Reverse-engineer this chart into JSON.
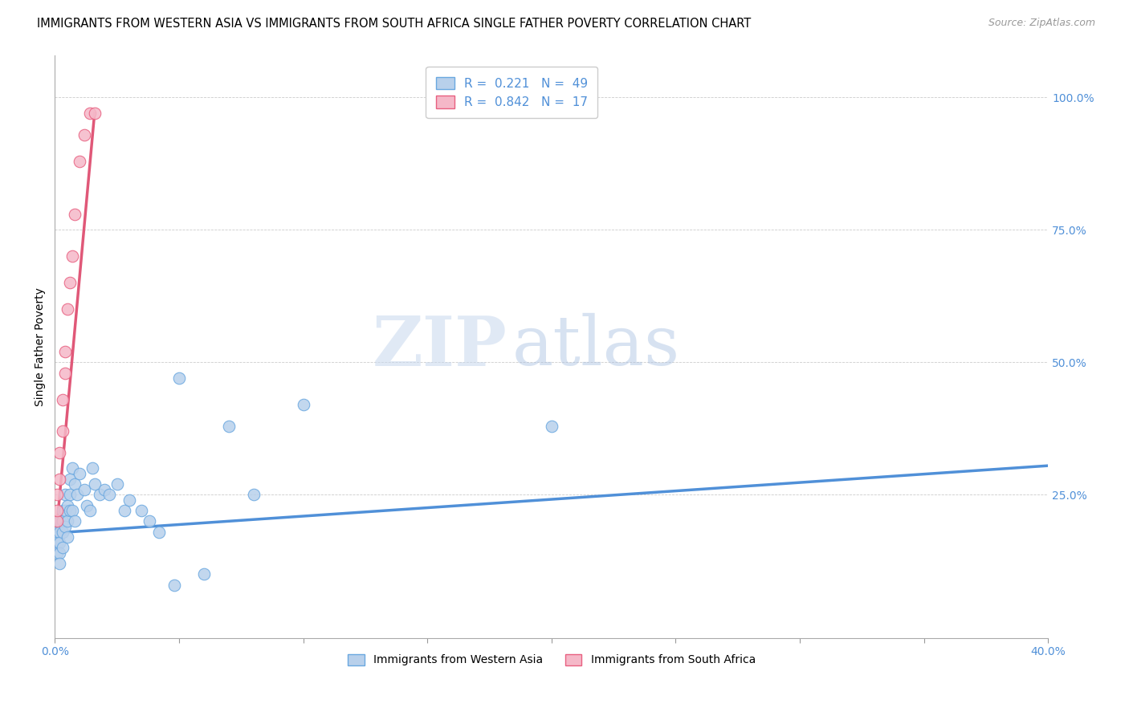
{
  "title": "IMMIGRANTS FROM WESTERN ASIA VS IMMIGRANTS FROM SOUTH AFRICA SINGLE FATHER POVERTY CORRELATION CHART",
  "source": "Source: ZipAtlas.com",
  "ylabel": "Single Father Poverty",
  "xlim": [
    0.0,
    0.4
  ],
  "ylim": [
    -0.02,
    1.08
  ],
  "right_ytick_vals": [
    0.25,
    0.5,
    0.75,
    1.0
  ],
  "right_ytick_labels": [
    "25.0%",
    "50.0%",
    "75.0%",
    "100.0%"
  ],
  "watermark_zip": "ZIP",
  "watermark_atlas": "atlas",
  "blue_color": "#b8d0eb",
  "pink_color": "#f5b8c8",
  "blue_edge": "#6aa8e0",
  "pink_edge": "#e86080",
  "blue_line": "#5090d8",
  "pink_line": "#e05878",
  "legend_color": "#5090d8",
  "title_fontsize": 10.5,
  "source_fontsize": 9,
  "axis_label_fontsize": 10,
  "tick_fontsize": 10,
  "legend_fontsize": 11,
  "western_asia_x": [
    0.001,
    0.001,
    0.001,
    0.001,
    0.002,
    0.002,
    0.002,
    0.002,
    0.002,
    0.003,
    0.003,
    0.003,
    0.003,
    0.004,
    0.004,
    0.004,
    0.005,
    0.005,
    0.005,
    0.006,
    0.006,
    0.006,
    0.007,
    0.007,
    0.008,
    0.008,
    0.009,
    0.01,
    0.012,
    0.013,
    0.014,
    0.015,
    0.016,
    0.018,
    0.02,
    0.022,
    0.025,
    0.028,
    0.03,
    0.035,
    0.038,
    0.042,
    0.048,
    0.05,
    0.06,
    0.07,
    0.08,
    0.1,
    0.2
  ],
  "western_asia_y": [
    0.18,
    0.17,
    0.16,
    0.14,
    0.2,
    0.18,
    0.16,
    0.14,
    0.12,
    0.22,
    0.2,
    0.18,
    0.15,
    0.25,
    0.22,
    0.19,
    0.23,
    0.2,
    0.17,
    0.28,
    0.25,
    0.22,
    0.3,
    0.22,
    0.27,
    0.2,
    0.25,
    0.29,
    0.26,
    0.23,
    0.22,
    0.3,
    0.27,
    0.25,
    0.26,
    0.25,
    0.27,
    0.22,
    0.24,
    0.22,
    0.2,
    0.18,
    0.08,
    0.47,
    0.1,
    0.38,
    0.25,
    0.42,
    0.38
  ],
  "south_africa_x": [
    0.001,
    0.001,
    0.001,
    0.002,
    0.002,
    0.003,
    0.003,
    0.004,
    0.004,
    0.005,
    0.006,
    0.007,
    0.008,
    0.01,
    0.012,
    0.014,
    0.016
  ],
  "south_africa_y": [
    0.2,
    0.22,
    0.25,
    0.28,
    0.33,
    0.37,
    0.43,
    0.48,
    0.52,
    0.6,
    0.65,
    0.7,
    0.78,
    0.88,
    0.93,
    0.97,
    0.97
  ],
  "blue_trendline_x0": 0.0,
  "blue_trendline_y0": 0.178,
  "blue_trendline_x1": 0.4,
  "blue_trendline_y1": 0.305,
  "pink_trendline_x0": 0.0,
  "pink_trendline_y0": 0.148,
  "pink_trendline_x1": 0.016,
  "pink_trendline_y1": 0.97
}
